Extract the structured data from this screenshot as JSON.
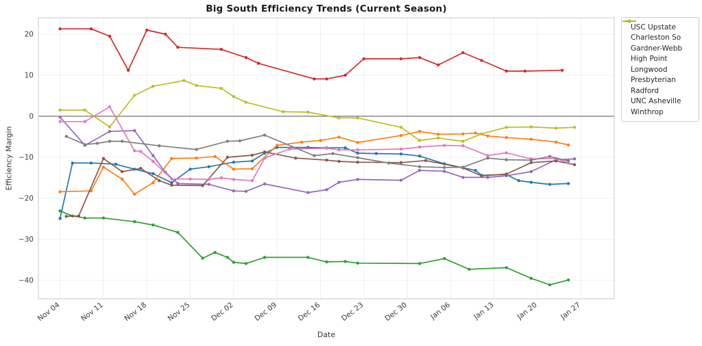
{
  "page": {
    "background": "#ffffff"
  },
  "chart_data": {
    "type": "line",
    "title": "Big South Efficiency Trends (Current Season)",
    "xlabel": "Date",
    "ylabel": "Efficiency Margin",
    "grid": true,
    "zero_line": true,
    "legend_position": "outside-right",
    "x_unit": "days since Nov 04",
    "xlim": [
      -3.5,
      89.4
    ],
    "ylim": [
      -44.5,
      24
    ],
    "x_tick_days": [
      0,
      7,
      14,
      21,
      28,
      35,
      42,
      49,
      56,
      63,
      70,
      77,
      84
    ],
    "x_tick_labels": [
      "Nov 04",
      "Nov 11",
      "Nov 18",
      "Nov 25",
      "Dec 02",
      "Dec 09",
      "Dec 16",
      "Dec 23",
      "Dec 30",
      "Jan 06",
      "Jan 13",
      "Jan 20",
      "Jan 27"
    ],
    "y_ticks": [
      -40,
      -30,
      -20,
      -10,
      0,
      10,
      20
    ],
    "y_tick_labels": [
      "−40",
      "−30",
      "−20",
      "−10",
      "0",
      "10",
      "20"
    ],
    "series": [
      {
        "name": "USC Upstate",
        "color": "#1f77b4",
        "points": [
          [
            0,
            -24.9
          ],
          [
            2,
            -11.4
          ],
          [
            5,
            -11.4
          ],
          [
            9,
            -11.7
          ],
          [
            12,
            -12.9
          ],
          [
            15,
            -14.0
          ],
          [
            18,
            -16.2
          ],
          [
            21,
            -12.9
          ],
          [
            24,
            -12.3
          ],
          [
            28,
            -11.2
          ],
          [
            31,
            -10.9
          ],
          [
            33,
            -9.0
          ],
          [
            35,
            -7.6
          ],
          [
            40,
            -7.6
          ],
          [
            43,
            -7.7
          ],
          [
            46,
            -7.7
          ],
          [
            48,
            -9.0
          ],
          [
            51,
            -9.1
          ],
          [
            55,
            -9.2
          ],
          [
            58,
            -9.7
          ],
          [
            62,
            -11.6
          ],
          [
            67,
            -13.2
          ],
          [
            68,
            -14.4
          ],
          [
            72,
            -14.2
          ],
          [
            74,
            -15.7
          ],
          [
            76,
            -16.1
          ],
          [
            79,
            -16.6
          ],
          [
            82,
            -16.4
          ]
        ]
      },
      {
        "name": "Charleston So",
        "color": "#ff7f0e",
        "points": [
          [
            0,
            -18.4
          ],
          [
            5,
            -18.2
          ],
          [
            7,
            -12.4
          ],
          [
            10,
            -15.3
          ],
          [
            12,
            -19.0
          ],
          [
            15,
            -16.2
          ],
          [
            18,
            -10.3
          ],
          [
            22,
            -10.2
          ],
          [
            25,
            -9.8
          ],
          [
            28,
            -12.9
          ],
          [
            31,
            -12.8
          ],
          [
            35,
            -7.1
          ],
          [
            39,
            -6.3
          ],
          [
            42,
            -5.9
          ],
          [
            45,
            -5.1
          ],
          [
            48,
            -6.4
          ],
          [
            55,
            -4.7
          ],
          [
            58,
            -3.7
          ],
          [
            61,
            -4.4
          ],
          [
            65,
            -4.3
          ],
          [
            67,
            -4.1
          ],
          [
            69,
            -4.8
          ],
          [
            72,
            -5.2
          ],
          [
            76,
            -5.6
          ],
          [
            80,
            -6.3
          ],
          [
            82,
            -7.0
          ]
        ]
      },
      {
        "name": "Gardner-Webb",
        "color": "#2ca02c",
        "points": [
          [
            0,
            -23.1
          ],
          [
            2,
            -24.3
          ],
          [
            4,
            -24.8
          ],
          [
            7,
            -24.8
          ],
          [
            12,
            -25.7
          ],
          [
            15,
            -26.5
          ],
          [
            19,
            -28.3
          ],
          [
            23,
            -34.6
          ],
          [
            25,
            -33.2
          ],
          [
            27,
            -34.4
          ],
          [
            28,
            -35.6
          ],
          [
            30,
            -35.9
          ],
          [
            33,
            -34.4
          ],
          [
            40,
            -34.4
          ],
          [
            43,
            -35.5
          ],
          [
            46,
            -35.4
          ],
          [
            48,
            -35.8
          ],
          [
            58,
            -35.9
          ],
          [
            62,
            -34.7
          ],
          [
            66,
            -37.3
          ],
          [
            72,
            -36.9
          ],
          [
            76,
            -39.5
          ],
          [
            79,
            -41.1
          ],
          [
            82,
            -39.9
          ]
        ]
      },
      {
        "name": "High Point",
        "color": "#d62728",
        "points": [
          [
            0,
            21.3
          ],
          [
            5,
            21.3
          ],
          [
            8,
            19.5
          ],
          [
            11,
            11.2
          ],
          [
            14,
            21.0
          ],
          [
            17,
            20.0
          ],
          [
            19,
            16.8
          ],
          [
            26,
            16.3
          ],
          [
            30,
            14.3
          ],
          [
            32,
            12.9
          ],
          [
            41,
            9.1
          ],
          [
            43,
            9.1
          ],
          [
            46,
            10.0
          ],
          [
            49,
            14.0
          ],
          [
            55,
            14.0
          ],
          [
            58,
            14.3
          ],
          [
            61,
            12.5
          ],
          [
            65,
            15.5
          ],
          [
            68,
            13.6
          ],
          [
            72,
            11.0
          ],
          [
            75,
            11.0
          ],
          [
            81,
            11.2
          ]
        ]
      },
      {
        "name": "Longwood",
        "color": "#9467bd",
        "points": [
          [
            0,
            -0.2
          ],
          [
            4,
            -7.1
          ],
          [
            8,
            -3.7
          ],
          [
            12,
            -3.5
          ],
          [
            15,
            -9.6
          ],
          [
            17,
            -13.7
          ],
          [
            19,
            -16.4
          ],
          [
            24,
            -16.6
          ],
          [
            28,
            -18.2
          ],
          [
            30,
            -18.3
          ],
          [
            33,
            -16.5
          ],
          [
            40,
            -18.6
          ],
          [
            43,
            -17.9
          ],
          [
            45,
            -16.1
          ],
          [
            48,
            -15.4
          ],
          [
            55,
            -15.6
          ],
          [
            58,
            -13.2
          ],
          [
            62,
            -13.4
          ],
          [
            65,
            -14.9
          ],
          [
            69,
            -14.9
          ],
          [
            72,
            -14.5
          ],
          [
            76,
            -13.5
          ],
          [
            80,
            -10.6
          ],
          [
            83,
            -10.4
          ]
        ]
      },
      {
        "name": "Presbyterian",
        "color": "#8c564b",
        "points": [
          [
            1,
            -24.4
          ],
          [
            3,
            -24.3
          ],
          [
            7,
            -10.3
          ],
          [
            10,
            -13.5
          ],
          [
            13,
            -12.7
          ],
          [
            16,
            -15.7
          ],
          [
            18,
            -16.8
          ],
          [
            23,
            -16.9
          ],
          [
            27,
            -10.0
          ],
          [
            31,
            -9.5
          ],
          [
            33,
            -8.7
          ],
          [
            38,
            -10.2
          ],
          [
            43,
            -10.7
          ],
          [
            45,
            -11.0
          ],
          [
            48,
            -11.2
          ],
          [
            55,
            -11.3
          ],
          [
            59,
            -10.8
          ],
          [
            65,
            -12.6
          ],
          [
            68,
            -14.5
          ],
          [
            72,
            -14.1
          ],
          [
            76,
            -11.3
          ],
          [
            80,
            -10.9
          ],
          [
            83,
            -11.8
          ]
        ]
      },
      {
        "name": "Radford",
        "color": "#e377c2",
        "points": [
          [
            0,
            -1.3
          ],
          [
            4,
            -1.3
          ],
          [
            8,
            2.3
          ],
          [
            12,
            -8.4
          ],
          [
            13,
            -8.6
          ],
          [
            15,
            -11.0
          ],
          [
            18,
            -15.3
          ],
          [
            21,
            -15.3
          ],
          [
            24,
            -15.4
          ],
          [
            26,
            -15.0
          ],
          [
            28,
            -15.4
          ],
          [
            31,
            -15.7
          ],
          [
            33,
            -10.2
          ],
          [
            37,
            -8.0
          ],
          [
            43,
            -7.8
          ],
          [
            45,
            -8.2
          ],
          [
            48,
            -8.2
          ],
          [
            55,
            -8.0
          ],
          [
            58,
            -7.5
          ],
          [
            62,
            -7.1
          ],
          [
            65,
            -7.2
          ],
          [
            69,
            -9.6
          ],
          [
            72,
            -8.9
          ],
          [
            76,
            -10.4
          ],
          [
            80,
            -10.3
          ],
          [
            82,
            -11.4
          ]
        ]
      },
      {
        "name": "UNC Asheville",
        "color": "#7f7f7f",
        "points": [
          [
            1,
            -4.9
          ],
          [
            4,
            -6.9
          ],
          [
            6,
            -6.6
          ],
          [
            8,
            -6.1
          ],
          [
            10,
            -6.1
          ],
          [
            16,
            -7.2
          ],
          [
            22,
            -8.1
          ],
          [
            27,
            -6.1
          ],
          [
            29,
            -6.0
          ],
          [
            33,
            -4.6
          ],
          [
            41,
            -9.6
          ],
          [
            44,
            -9.1
          ],
          [
            48,
            -10.1
          ],
          [
            53,
            -11.4
          ],
          [
            58,
            -12.3
          ],
          [
            62,
            -12.5
          ],
          [
            65,
            -12.4
          ],
          [
            69,
            -10.2
          ],
          [
            72,
            -10.6
          ],
          [
            76,
            -10.7
          ],
          [
            79,
            -9.8
          ],
          [
            82,
            -10.9
          ]
        ]
      },
      {
        "name": "Winthrop",
        "color": "#bcbd22",
        "points": [
          [
            0,
            1.5
          ],
          [
            4,
            1.5
          ],
          [
            8,
            -2.6
          ],
          [
            12,
            5.1
          ],
          [
            15,
            7.3
          ],
          [
            20,
            8.7
          ],
          [
            22,
            7.5
          ],
          [
            26,
            6.8
          ],
          [
            28,
            4.8
          ],
          [
            30,
            3.4
          ],
          [
            36,
            1.1
          ],
          [
            40,
            1.0
          ],
          [
            45,
            -0.4
          ],
          [
            48,
            -0.4
          ],
          [
            55,
            -2.7
          ],
          [
            58,
            -5.9
          ],
          [
            61,
            -5.3
          ],
          [
            65,
            -6.1
          ],
          [
            68,
            -4.3
          ],
          [
            72,
            -2.7
          ],
          [
            76,
            -2.6
          ],
          [
            80,
            -2.9
          ],
          [
            83,
            -2.7
          ]
        ]
      }
    ],
    "style": {
      "grid_color": "#efefef",
      "spine_color": "#c9c9c9",
      "zero_line_color": "#4d4d4d",
      "tick_label_color": "#3b3b3b",
      "plot_background": "#ffffff"
    }
  }
}
